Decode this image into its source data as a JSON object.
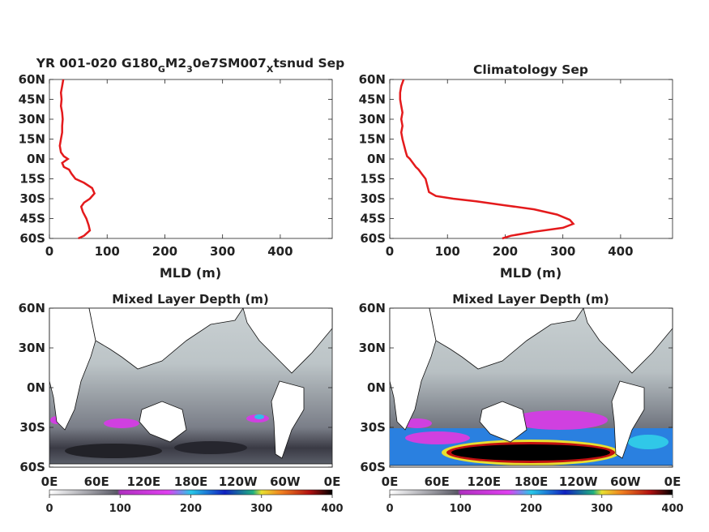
{
  "chart_data": [
    {
      "type": "line",
      "title_parts": [
        "YR 001-020 G180",
        "G",
        "M2",
        "3",
        "0e7SM007",
        "X",
        "tsnud Sep"
      ],
      "xlabel": "MLD (m)",
      "xlim": [
        0,
        490
      ],
      "xticks": [
        "0",
        "100",
        "200",
        "300",
        "400"
      ],
      "yticks": [
        "60N",
        "45N",
        "30N",
        "15N",
        "0N",
        "15S",
        "30S",
        "45S",
        "60S"
      ],
      "ylim": [
        -60,
        60
      ],
      "grid": false,
      "series": [
        {
          "color": "#e41a1c",
          "points": [
            [
              24,
              60
            ],
            [
              22,
              55
            ],
            [
              20,
              50
            ],
            [
              21,
              45
            ],
            [
              20,
              40
            ],
            [
              22,
              35
            ],
            [
              23,
              30
            ],
            [
              22,
              25
            ],
            [
              22,
              20
            ],
            [
              20,
              15
            ],
            [
              18,
              10
            ],
            [
              20,
              5
            ],
            [
              25,
              2
            ],
            [
              32,
              0
            ],
            [
              22,
              -3
            ],
            [
              25,
              -6
            ],
            [
              34,
              -8
            ],
            [
              38,
              -11
            ],
            [
              45,
              -15
            ],
            [
              60,
              -18
            ],
            [
              74,
              -22
            ],
            [
              78,
              -26
            ],
            [
              70,
              -30
            ],
            [
              60,
              -33
            ],
            [
              55,
              -36
            ],
            [
              58,
              -40
            ],
            [
              64,
              -45
            ],
            [
              68,
              -50
            ],
            [
              70,
              -54
            ],
            [
              60,
              -58
            ],
            [
              50,
              -60
            ]
          ]
        }
      ]
    },
    {
      "type": "line",
      "title": "Climatology Sep",
      "xlabel": "MLD (m)",
      "xlim": [
        0,
        490
      ],
      "xticks": [
        "0",
        "100",
        "200",
        "300",
        "400"
      ],
      "yticks": [
        "60N",
        "45N",
        "30N",
        "15N",
        "0N",
        "15S",
        "30S",
        "45S",
        "60S"
      ],
      "ylim": [
        -60,
        60
      ],
      "grid": false,
      "series": [
        {
          "color": "#e41a1c",
          "points": [
            [
              24,
              60
            ],
            [
              20,
              55
            ],
            [
              18,
              50
            ],
            [
              18,
              45
            ],
            [
              20,
              40
            ],
            [
              22,
              35
            ],
            [
              20,
              30
            ],
            [
              22,
              25
            ],
            [
              20,
              20
            ],
            [
              22,
              15
            ],
            [
              25,
              10
            ],
            [
              28,
              5
            ],
            [
              30,
              2
            ],
            [
              35,
              0
            ],
            [
              40,
              -3
            ],
            [
              45,
              -6
            ],
            [
              50,
              -8
            ],
            [
              55,
              -11
            ],
            [
              62,
              -15
            ],
            [
              65,
              -20
            ],
            [
              68,
              -25
            ],
            [
              80,
              -28
            ],
            [
              110,
              -30
            ],
            [
              150,
              -32
            ],
            [
              200,
              -35
            ],
            [
              250,
              -38
            ],
            [
              290,
              -42
            ],
            [
              312,
              -46
            ],
            [
              318,
              -49
            ],
            [
              300,
              -52
            ],
            [
              250,
              -55
            ],
            [
              210,
              -58
            ],
            [
              195,
              -60
            ]
          ]
        }
      ]
    },
    {
      "type": "heatmap",
      "title": "Mixed Layer Depth (m)",
      "yticks": [
        "60N",
        "30N",
        "0N",
        "30S",
        "60S"
      ],
      "xticks": [
        "0E",
        "60E",
        "120E",
        "180E",
        "120W",
        "60W",
        "0E"
      ],
      "ylim": [
        -60,
        60
      ],
      "colorbar": {
        "ticks": [
          "0",
          "100",
          "200",
          "300",
          "400"
        ],
        "range": [
          0,
          400
        ]
      }
    },
    {
      "type": "heatmap",
      "title": "Mixed Layer Depth (m)",
      "yticks": [
        "60N",
        "30N",
        "0N",
        "30S",
        "60S"
      ],
      "xticks": [
        "0E",
        "60E",
        "120E",
        "180E",
        "120W",
        "60W",
        "0E"
      ],
      "ylim": [
        -60,
        60
      ],
      "colorbar": {
        "ticks": [
          "0",
          "100",
          "200",
          "300",
          "400"
        ],
        "range": [
          0,
          400
        ]
      }
    }
  ]
}
